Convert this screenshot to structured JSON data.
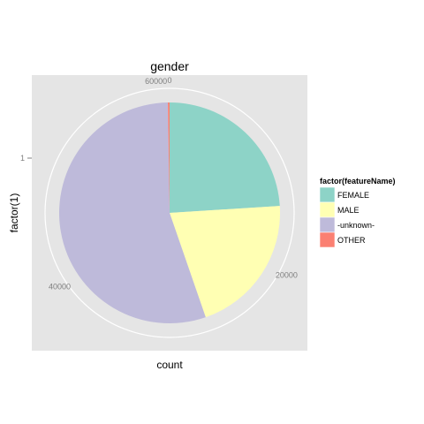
{
  "chart_data": {
    "type": "pie",
    "title": "gender",
    "xlabel": "count",
    "ylabel": "factor(1)",
    "y_tick_labels": [
      "1"
    ],
    "radial_tick_labels": [
      "0",
      "20000",
      "40000",
      "60000"
    ],
    "radial_range": [
      0,
      61000
    ],
    "legend_title": "factor(featureName)",
    "legend_position": "right",
    "grid": true,
    "categories": [
      "FEMALE",
      "MALE",
      "-unknown-",
      "OTHER"
    ],
    "values": [
      14600,
      12600,
      33500,
      150
    ],
    "colors": [
      "#8dd3c7",
      "#ffffb3",
      "#bebada",
      "#fb8072"
    ]
  }
}
